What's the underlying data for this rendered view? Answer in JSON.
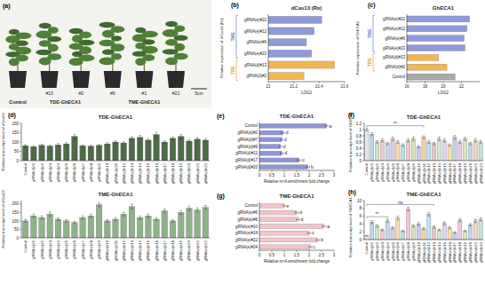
{
  "photo": {
    "panel_label": "(a)",
    "scale_bar": "5cm",
    "groups": [
      {
        "label": "Control",
        "plant_ids": []
      },
      {
        "label": "TDE-GhECA1",
        "plant_ids": [
          "#13",
          "#2"
        ]
      },
      {
        "label": "TME-GhECA1",
        "plant_ids": [
          "#6",
          "#1",
          "#22"
        ]
      }
    ]
  },
  "chart_data": [
    {
      "type": "bar",
      "orientation": "horizontal",
      "panel_label": "(b)",
      "title": "dCas13 (Rx)",
      "x_label": "LOG2",
      "y_label": "Relative expression of dCas13 (Rx)",
      "categories": [
        "gRNA(e)#22",
        "gRNA(e)#12",
        "gRNA(e)#6",
        "gRNA(e)#23",
        "gRNA(d)#13",
        "gRNA(d)#2"
      ],
      "values": [
        21.42,
        21.36,
        21.3,
        21.34,
        21.52,
        21.28
      ],
      "colors": [
        "#8f9ad8",
        "#8f9ad8",
        "#8f9ad8",
        "#8f9ad8",
        "#f2b552",
        "#f2b552"
      ],
      "xlim": [
        21,
        21.6
      ],
      "xticks": [
        21,
        21.2,
        21.4,
        21.6
      ],
      "groups": [
        {
          "label": "TME",
          "from": 0,
          "to": 3,
          "color": "#6f7fcf"
        },
        {
          "label": "TDE",
          "from": 4,
          "to": 5,
          "color": "#e6a030"
        }
      ]
    },
    {
      "type": "bar",
      "orientation": "horizontal",
      "panel_label": "(c)",
      "title": "GhECA1",
      "x_label": "LOG2",
      "y_label": "Relative expression of GhECA1",
      "categories": [
        "gRNA(e)#22",
        "gRNA(e)#12",
        "gRNA(e)#6",
        "gRNA(e)#23",
        "gRNA(d)#13",
        "gRNA(d)#2",
        "Control"
      ],
      "values": [
        22.9,
        22.6,
        22.3,
        22.4,
        19.5,
        20.4,
        21.3
      ],
      "colors": [
        "#8f9ad8",
        "#8f9ad8",
        "#8f9ad8",
        "#8f9ad8",
        "#f2b552",
        "#f2b552",
        "#a9a9a9"
      ],
      "xlim": [
        16,
        24
      ],
      "xticks": [
        16,
        18,
        20,
        22
      ],
      "groups": [
        {
          "label": "TME",
          "from": 0,
          "to": 3,
          "color": "#6f7fcf"
        },
        {
          "label": "TDE",
          "from": 4,
          "to": 5,
          "color": "#e6a030"
        }
      ]
    },
    {
      "type": "bar",
      "panel_label": "(d)",
      "title": "TDE-GhECA1",
      "y_label": "Relative transcript level of dCas13",
      "categories": [
        "Control",
        "gRNA(d)#1",
        "gRNA(d)#2",
        "gRNA(d)#3",
        "gRNA(d)#4",
        "gRNA(d)#5",
        "gRNA(d)#6",
        "gRNA(d)#7",
        "gRNA(d)#8",
        "gRNA(d)#9",
        "gRNA(d)#10",
        "gRNA(d)#11",
        "gRNA(d)#12",
        "gRNA(d)#13",
        "gRNA(d)#14",
        "gRNA(d)#15",
        "gRNA(d)#16",
        "gRNA(d)#17",
        "gRNA(d)#18",
        "gRNA(d)#19",
        "gRNA(d)#20",
        "gRNA(d)#21",
        "gRNA(d)#22"
      ],
      "values": [
        80,
        75,
        82,
        78,
        85,
        90,
        130,
        80,
        78,
        82,
        90,
        100,
        95,
        120,
        125,
        110,
        140,
        100,
        120,
        130,
        105,
        115,
        110
      ],
      "errors": [
        6,
        5,
        6,
        5,
        7,
        6,
        10,
        5,
        6,
        5,
        7,
        8,
        6,
        9,
        10,
        8,
        12,
        7,
        9,
        10,
        8,
        9,
        8
      ],
      "color": "#4e6b47",
      "ylim": [
        0,
        200
      ],
      "yticks": [
        0,
        50,
        100,
        150,
        200
      ]
    },
    {
      "type": "bar",
      "title": "TME-GhECA1",
      "y_label": "Relative transcript level of dCas13",
      "categories": [
        "Control",
        "gRNA(e)#1",
        "gRNA(e)#2",
        "gRNA(e)#3",
        "gRNA(e)#4",
        "gRNA(e)#5",
        "gRNA(e)#6",
        "gRNA(e)#7",
        "gRNA(e)#8",
        "gRNA(e)#9",
        "gRNA(e)#10",
        "gRNA(e)#11",
        "gRNA(e)#12",
        "gRNA(e)#13",
        "gRNA(e)#14",
        "gRNA(e)#15",
        "gRNA(e)#16",
        "gRNA(e)#17",
        "gRNA(e)#18",
        "gRNA(e)#19",
        "gRNA(e)#20",
        "gRNA(e)#21",
        "gRNA(e)#22"
      ],
      "values": [
        100,
        130,
        120,
        140,
        110,
        100,
        90,
        120,
        130,
        195,
        100,
        110,
        140,
        185,
        120,
        130,
        110,
        160,
        100,
        150,
        175,
        165,
        180
      ],
      "errors": [
        8,
        10,
        9,
        12,
        8,
        7,
        6,
        9,
        10,
        12,
        8,
        9,
        11,
        14,
        9,
        10,
        8,
        12,
        7,
        11,
        13,
        12,
        12
      ],
      "color": "#8fb28a",
      "ylim": [
        0,
        220
      ],
      "yticks": [
        0,
        50,
        100,
        150,
        200
      ]
    },
    {
      "type": "bar",
      "orientation": "horizontal",
      "panel_label": "(e)",
      "title": "TDE-GhECA1",
      "x_label": "Relative m⁶A enrichment fold change",
      "categories": [
        "Control",
        "gRNA(d)#2",
        "gRNA(d)#7",
        "gRNA(d)#9",
        "gRNA(d)#11",
        "gRNA(d)#17",
        "gRNA(d)#20"
      ],
      "values": [
        2.7,
        0.95,
        0.9,
        0.85,
        0.9,
        1.6,
        1.95
      ],
      "errors": [
        0.05,
        0.06,
        0.05,
        0.05,
        0.06,
        0.08,
        0.07
      ],
      "significance": [
        "a",
        "d",
        "d",
        "d",
        "d",
        "c",
        "b"
      ],
      "color": "#8f96d6",
      "xlim": [
        0,
        3
      ],
      "xticks": [
        0,
        0.5,
        1,
        1.5,
        2,
        2.5,
        3
      ]
    },
    {
      "type": "bar",
      "panel_label": "(f)",
      "title": "TDE-GhECA1",
      "y_label": "Relative transcript level of GhECA1",
      "categories": [
        "Control",
        "gRNA(d)#1",
        "gRNA(d)#2",
        "gRNA(d)#3",
        "gRNA(d)#4",
        "gRNA(d)#5",
        "gRNA(d)#6",
        "gRNA(d)#7",
        "gRNA(d)#8",
        "gRNA(d)#9",
        "gRNA(d)#10",
        "gRNA(d)#11",
        "gRNA(d)#12",
        "gRNA(d)#13",
        "gRNA(d)#14",
        "gRNA(d)#15",
        "gRNA(d)#16",
        "gRNA(d)#17",
        "gRNA(d)#18",
        "gRNA(d)#19",
        "gRNA(d)#20",
        "gRNA(d)#21",
        "gRNA(d)#22"
      ],
      "values": [
        1,
        0.85,
        0.6,
        0.65,
        0.55,
        0.7,
        0.6,
        0.5,
        0.65,
        0.7,
        0.45,
        0.75,
        0.6,
        0.55,
        0.7,
        0.65,
        0.5,
        0.75,
        0.6,
        0.7,
        0.55,
        0.65,
        0.6
      ],
      "errors": [
        0.04,
        0.05,
        0.04,
        0.05,
        0.04,
        0.06,
        0.05,
        0.04,
        0.05,
        0.06,
        0.04,
        0.05,
        0.05,
        0.04,
        0.06,
        0.05,
        0.04,
        0.06,
        0.05,
        0.05,
        0.04,
        0.05,
        0.05
      ],
      "colors": [
        "#e8e8e8",
        "#b8d8e8",
        "#c8e6c9",
        "#f8c8c8",
        "#c6d9f1",
        "#e1c6e7",
        "#f6dcb4",
        "#b9e2d6",
        "#f4c2d7",
        "#d7e4b5",
        "#c9c9ef",
        "#f3d1a8",
        "#bfe0f0",
        "#e8c4c4",
        "#cfe8cf",
        "#e6d3f0",
        "#f8e0b0",
        "#bcd4e6",
        "#f0c8e0",
        "#d4e8c0",
        "#c8d0f0",
        "#f0d8c0",
        "#c0e4e0"
      ],
      "ylim": [
        0,
        1.2
      ],
      "yticks": [
        0,
        0.2,
        0.4,
        0.6,
        0.8,
        1,
        1.2
      ],
      "brackets": [
        {
          "from": 0,
          "to": 11,
          "label": "**"
        }
      ]
    },
    {
      "type": "bar",
      "orientation": "horizontal",
      "panel_label": "(g)",
      "title": "TME-GhECA1",
      "x_label": "Relative m⁶A enrichment fold change",
      "categories": [
        "Control",
        "gRNA(e)#6",
        "gRNA(e)#8",
        "gRNA(e)#10",
        "gRNA(e)#18",
        "gRNA(e)#22",
        "gRNA(e)#24"
      ],
      "values": [
        1,
        1.5,
        1.55,
        2.6,
        2,
        2.35,
        2.05
      ],
      "errors": [
        0.04,
        0.06,
        0.06,
        0.07,
        0.06,
        0.07,
        0.06
      ],
      "significance": [
        "e",
        "d",
        "d",
        "a",
        "c",
        "b",
        "c"
      ],
      "color": "#f5c3cb",
      "xlim": [
        0,
        3
      ],
      "xticks": [
        0,
        0.5,
        1,
        1.5,
        2,
        2.5,
        3
      ]
    },
    {
      "type": "bar",
      "panel_label": "(h)",
      "title": "TME-GhECA1",
      "y_label": "Relative transcript level of GhECA1",
      "categories": [
        "Control",
        "gRNA(e)#1",
        "gRNA(e)#2",
        "gRNA(e)#3",
        "gRNA(e)#4",
        "gRNA(e)#5",
        "gRNA(e)#6",
        "gRNA(e)#7",
        "gRNA(e)#8",
        "gRNA(e)#9",
        "gRNA(e)#10",
        "gRNA(e)#11",
        "gRNA(e)#12",
        "gRNA(e)#13",
        "gRNA(e)#14",
        "gRNA(e)#15",
        "gRNA(e)#16",
        "gRNA(e)#17",
        "gRNA(e)#18",
        "gRNA(e)#19",
        "gRNA(e)#20",
        "gRNA(e)#21",
        "gRNA(e)#22"
      ],
      "values": [
        1,
        4.5,
        3.5,
        2.5,
        4.8,
        3,
        5.5,
        2.2,
        7.8,
        3.5,
        4,
        2.8,
        6.5,
        3.2,
        2.5,
        4.2,
        3,
        1.8,
        5,
        2.2,
        3.8,
        4.8,
        5.2
      ],
      "errors": [
        0.1,
        0.4,
        0.3,
        0.2,
        0.4,
        0.3,
        0.5,
        0.2,
        0.5,
        0.3,
        0.4,
        0.3,
        0.5,
        0.3,
        0.2,
        0.4,
        0.3,
        0.2,
        0.4,
        0.2,
        0.3,
        0.4,
        0.4
      ],
      "colors": [
        "#e8e8e8",
        "#b8d8e8",
        "#c8e6c9",
        "#f8c8c8",
        "#c6d9f1",
        "#e1c6e7",
        "#f6dcb4",
        "#b9e2d6",
        "#f4c2d7",
        "#d7e4b5",
        "#c9c9ef",
        "#f3d1a8",
        "#bfe0f0",
        "#e8c4c4",
        "#cfe8cf",
        "#e6d3f0",
        "#f8e0b0",
        "#bcd4e6",
        "#f0c8e0",
        "#d4e8c0",
        "#c8d0f0",
        "#f0d8c0",
        "#c0e4e0"
      ],
      "ylim": [
        0,
        10
      ],
      "yticks": [
        0,
        2,
        4,
        6,
        8,
        10
      ],
      "brackets": [
        {
          "from": 0,
          "to": 4,
          "label": "**"
        },
        {
          "from": 0,
          "to": 13,
          "label": "ns"
        }
      ]
    }
  ]
}
